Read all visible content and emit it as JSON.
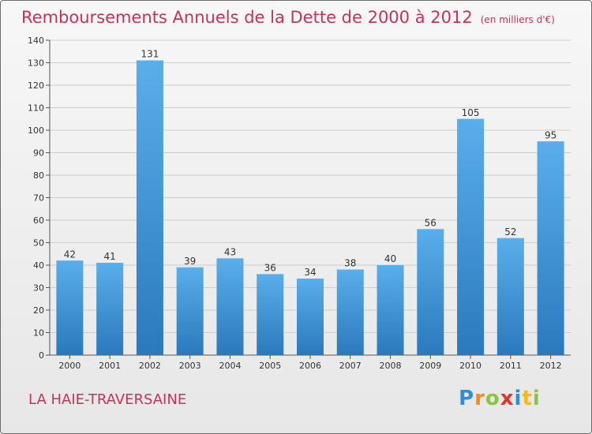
{
  "header": {
    "title": "Remboursements Annuels de la Dette de 2000 à 2012",
    "subtitle": "(en milliers d'€)"
  },
  "commune": "LA HAIE-TRAVERSAINE",
  "logo": {
    "letters": [
      {
        "ch": "P",
        "color": "#2f8fd6"
      },
      {
        "ch": "r",
        "color": "#f08a1c"
      },
      {
        "ch": "o",
        "color": "#8cc63f"
      },
      {
        "ch": "x",
        "color": "#e6332a"
      },
      {
        "ch": "i",
        "color": "#2f8fd6"
      },
      {
        "ch": "t",
        "color": "#f5b91a"
      },
      {
        "ch": "i",
        "color": "#8cc63f"
      }
    ]
  },
  "chart_data": {
    "type": "bar",
    "title": "Remboursements Annuels de la Dette de 2000 à 2012",
    "subtitle": "(en milliers d'€)",
    "categories": [
      "2000",
      "2001",
      "2002",
      "2003",
      "2004",
      "2005",
      "2006",
      "2007",
      "2008",
      "2009",
      "2010",
      "2011",
      "2012"
    ],
    "values": [
      42,
      41,
      131,
      39,
      43,
      36,
      34,
      38,
      40,
      56,
      105,
      52,
      95
    ],
    "ylim": [
      0,
      140
    ],
    "yticks": [
      0,
      10,
      20,
      30,
      40,
      50,
      60,
      70,
      80,
      90,
      100,
      110,
      120,
      130,
      140
    ],
    "grid": true,
    "data_labels": true,
    "colors": {
      "bar_light": "#5aaeea",
      "bar_dark": "#2a79bd",
      "grid": "#cccccc",
      "axis": "#555555",
      "text": "#333333",
      "accent": "#c8325a"
    }
  }
}
